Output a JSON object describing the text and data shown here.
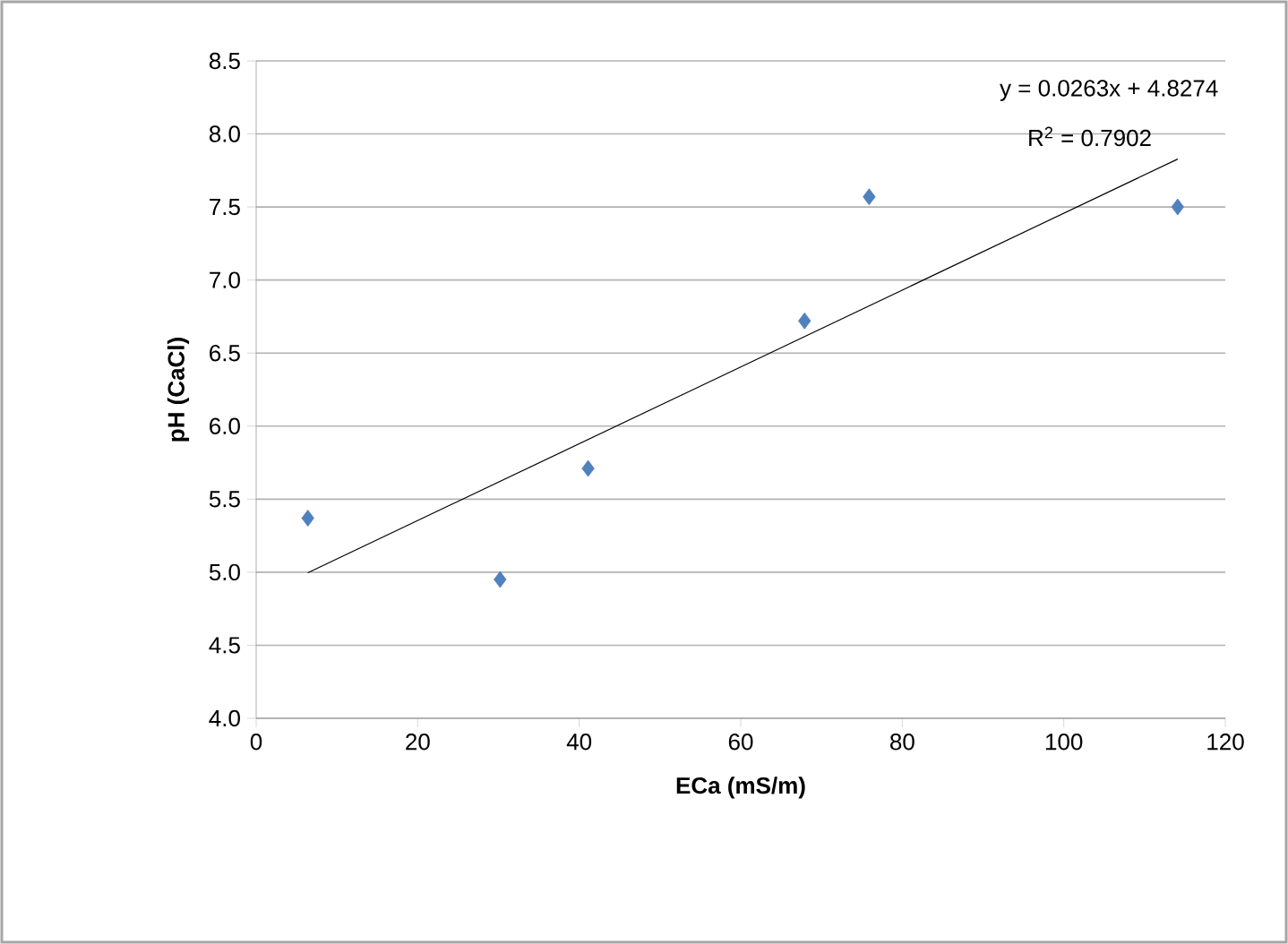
{
  "chart_data": {
    "type": "scatter",
    "xlabel": "ECa (mS/m)",
    "ylabel": "pH (CaCl)",
    "series": [
      {
        "color": "#4f81bd",
        "marker": "diamond",
        "x": [
          6.4,
          30.2,
          41.1,
          67.9,
          75.9,
          114.1
        ],
        "values": [
          5.37,
          4.95,
          5.71,
          6.72,
          7.57,
          7.5
        ]
      },
      {
        "type": "line",
        "color": "#000000",
        "x": [
          6.4,
          114.1
        ],
        "values": [
          4.996,
          7.828
        ]
      }
    ],
    "annotations": [
      "y = 0.0263x + 4.8274",
      "R$^{2}$ = 0.7902"
    ],
    "xlim": [
      0,
      120
    ],
    "xticks": [
      0,
      20,
      40,
      60,
      80,
      100,
      120
    ],
    "ylim": [
      4,
      8.5
    ],
    "yticks": [
      {
        "value": 4,
        "label": "4.0"
      },
      {
        "value": 4.5,
        "label": "4.5"
      },
      {
        "value": 5,
        "label": "5.0"
      },
      {
        "value": 5.5,
        "label": "5.5"
      },
      {
        "value": 6,
        "label": "6.0"
      },
      {
        "value": 6.5,
        "label": "6.5"
      },
      {
        "value": 7,
        "label": "7.0"
      },
      {
        "value": 7.5,
        "label": "7.5"
      },
      {
        "value": 8,
        "label": "8.0"
      },
      {
        "value": 8.5,
        "label": "8.5"
      }
    ],
    "grid": "y"
  }
}
